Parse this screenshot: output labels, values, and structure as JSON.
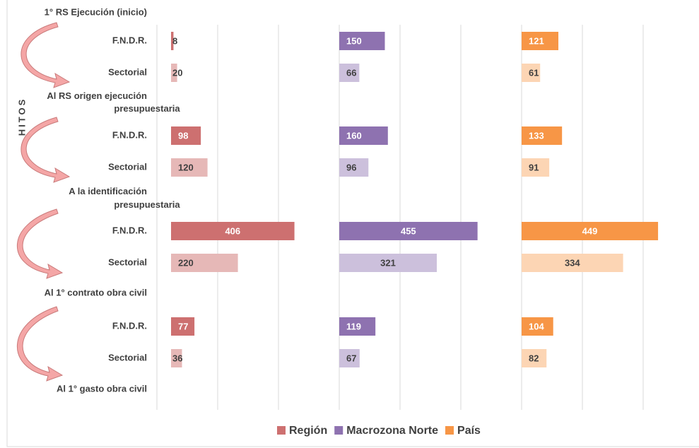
{
  "chart_data": {
    "type": "bar",
    "orientation": "horizontal",
    "y_axis_label": "HITOS",
    "milestones": [
      "1° RS Ejecución (inicio)",
      "Al RS origen ejecución presupuestaria",
      "A la identificación presupuestaria",
      "Al 1° contrato obra civil",
      "Al 1° gasto obra civil"
    ],
    "categories": [
      "F.N.D.R.",
      "Sectorial",
      "F.N.D.R.",
      "Sectorial",
      "F.N.D.R.",
      "Sectorial",
      "F.N.D.R.",
      "Sectorial"
    ],
    "series": [
      {
        "name": "Región",
        "color": "#cd7070",
        "light_color": "#e6b8b7",
        "values": [
          8,
          20,
          98,
          120,
          406,
          220,
          77,
          36
        ]
      },
      {
        "name": "Macrozona Norte",
        "color": "#8e72b0",
        "light_color": "#ccc0dc",
        "values": [
          150,
          66,
          160,
          96,
          455,
          321,
          119,
          67
        ]
      },
      {
        "name": "País",
        "color": "#f79646",
        "light_color": "#fcd5b4",
        "values": [
          121,
          61,
          133,
          91,
          449,
          334,
          104,
          82
        ]
      }
    ],
    "xlim": [
      0,
      600
    ],
    "xticks": [
      0,
      200,
      400
    ],
    "grid": true,
    "legend": "bottom"
  }
}
